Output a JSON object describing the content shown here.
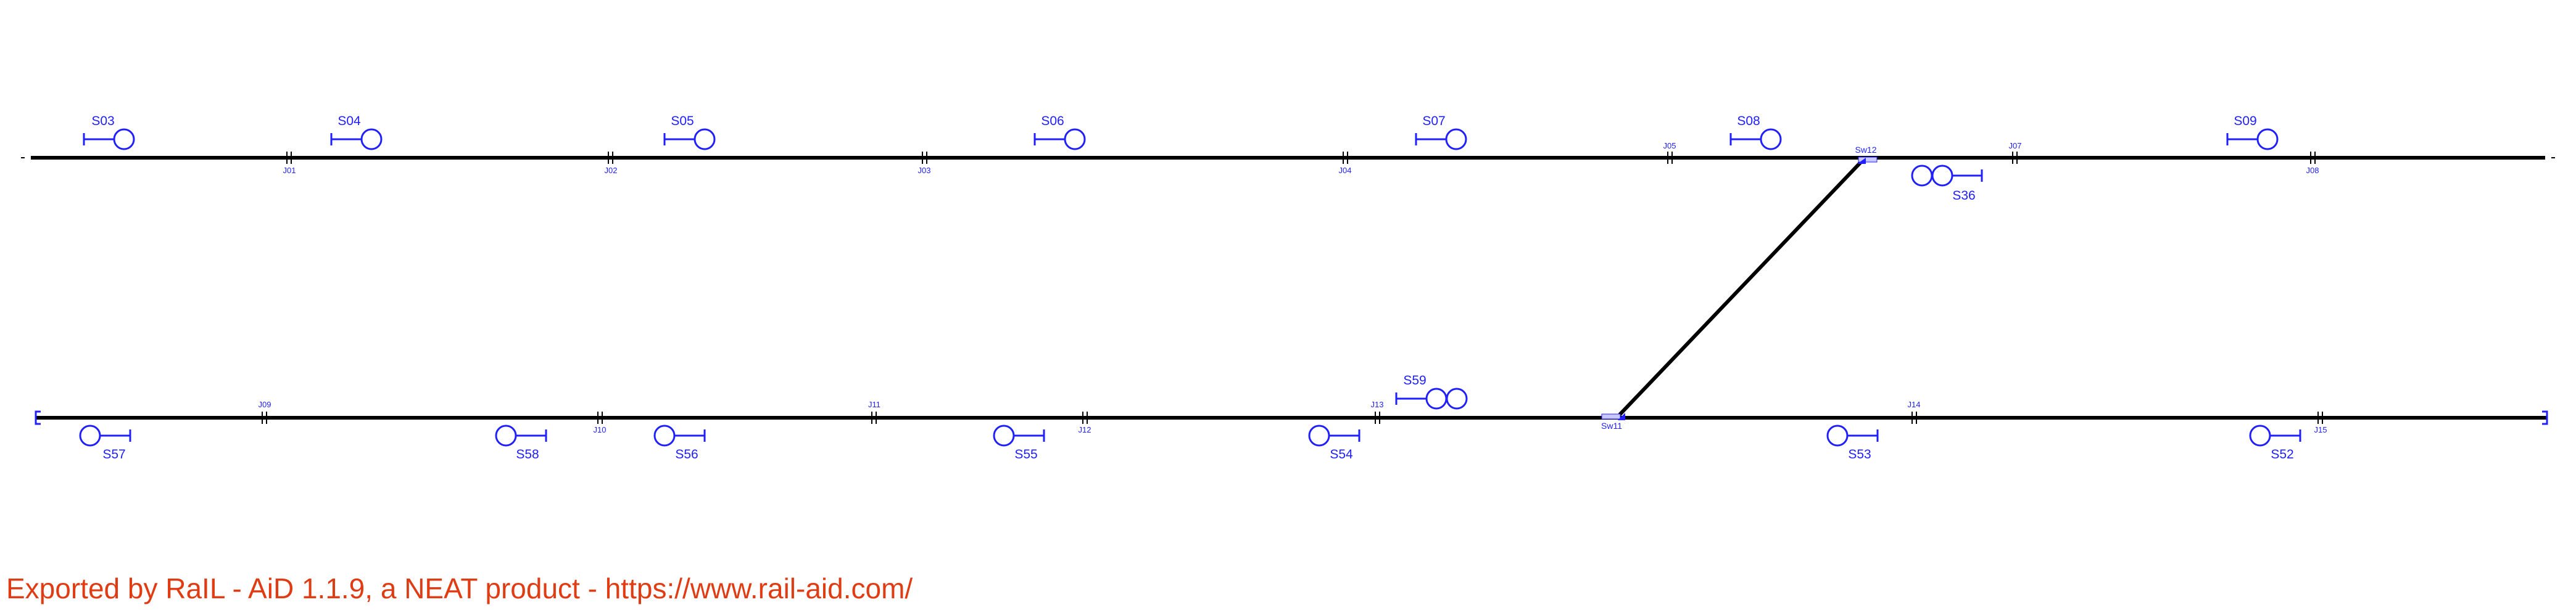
{
  "colors": {
    "track": "#000000",
    "signal": "#2020ff",
    "footer": "#e03c14"
  },
  "signals_upper": [
    {
      "id": "S03"
    },
    {
      "id": "S04"
    },
    {
      "id": "S05"
    },
    {
      "id": "S06"
    },
    {
      "id": "S07"
    },
    {
      "id": "S08"
    },
    {
      "id": "S09"
    }
  ],
  "signal_shunt_upper": {
    "id": "S36"
  },
  "joints_upper": [
    "J01",
    "J02",
    "J03",
    "J04",
    "J05",
    "J07",
    "J08"
  ],
  "switch_upper": {
    "id": "Sw12"
  },
  "signals_lower": [
    {
      "id": "S57"
    },
    {
      "id": "S58"
    },
    {
      "id": "S56"
    },
    {
      "id": "S55"
    },
    {
      "id": "S54"
    },
    {
      "id": "S53"
    },
    {
      "id": "S52"
    }
  ],
  "signal_shunt_lower": {
    "id": "S59"
  },
  "joints_lower": [
    "J09",
    "J10",
    "J11",
    "J12",
    "J13",
    "J14",
    "J15"
  ],
  "switch_lower": {
    "id": "Sw11"
  },
  "footer": {
    "text": "Exported by RaIL - AiD  1.1.9, a NEAT product - https://www.rail-aid.com/"
  }
}
